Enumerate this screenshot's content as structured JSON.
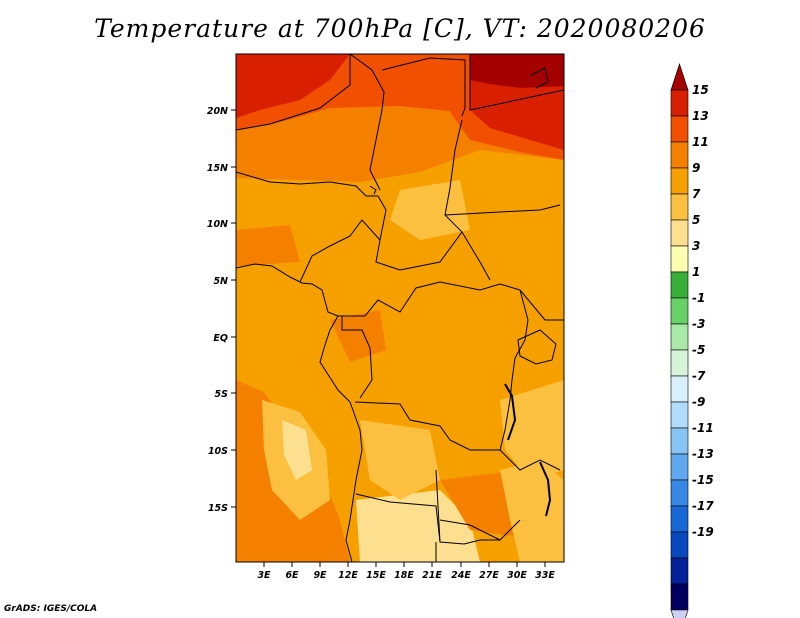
{
  "title": "Temperature at 700hPa [C], VT: 2020080206",
  "credit": "GrADS: IGES/COLA",
  "map": {
    "lat_labels": [
      "20N",
      "15N",
      "10N",
      "5N",
      "EQ",
      "5S",
      "10S",
      "15S"
    ],
    "lon_labels": [
      "3E",
      "6E",
      "9E",
      "12E",
      "15E",
      "18E",
      "21E",
      "24E",
      "27E",
      "30E",
      "33E"
    ]
  },
  "colorbar": {
    "levels": [
      "15",
      "13",
      "11",
      "9",
      "7",
      "5",
      "3",
      "1",
      "-1",
      "-3",
      "-5",
      "-7",
      "-9",
      "-11",
      "-13",
      "-15",
      "-17",
      "-19"
    ],
    "colors": [
      "#a50000",
      "#d82000",
      "#f05000",
      "#f58000",
      "#f6a000",
      "#fbc040",
      "#fce090",
      "#fefeb0",
      "#38b038",
      "#68d068",
      "#a8e8a8",
      "#d8f4d8",
      "#d8f0fc",
      "#b0dcfa",
      "#88c4f4",
      "#60a8f0",
      "#3888e6",
      "#1868d8",
      "#0a48c0",
      "#04209a",
      "#000060",
      "#d0d0f4"
    ]
  },
  "chart_data": {
    "type": "heatmap",
    "title": "Temperature at 700hPa [C], VT: 2020080206",
    "variable": "Temperature at 700hPa",
    "units": "C",
    "valid_time": "2020080206",
    "lon_range": [
      "0E",
      "35E"
    ],
    "lat_range": [
      "20S",
      "25N"
    ],
    "contour_levels": [
      -19,
      -17,
      -15,
      -13,
      -11,
      -9,
      -7,
      -5,
      -3,
      -1,
      1,
      3,
      5,
      7,
      9,
      11,
      13,
      15
    ]
  }
}
